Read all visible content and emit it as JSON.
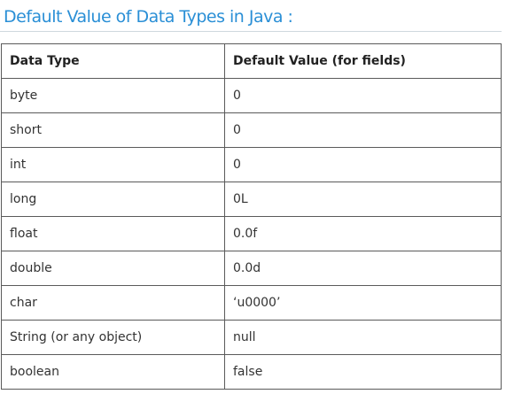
{
  "page": {
    "heading": "Default Value of Data Types in Java :"
  },
  "table": {
    "headers": [
      "Data Type",
      "Default Value (for fields)"
    ],
    "rows": [
      [
        "byte",
        "0"
      ],
      [
        "short",
        "0"
      ],
      [
        "int",
        "0"
      ],
      [
        "long",
        "0L"
      ],
      [
        "float",
        "0.0f"
      ],
      [
        "double",
        "0.0d"
      ],
      [
        "char",
        "‘u0000’"
      ],
      [
        "String (or any object)",
        "null"
      ],
      [
        "boolean",
        "false"
      ]
    ]
  },
  "colors": {
    "heading": "#2a8fd6",
    "border": "#5a5a5a",
    "text": "#333333"
  }
}
